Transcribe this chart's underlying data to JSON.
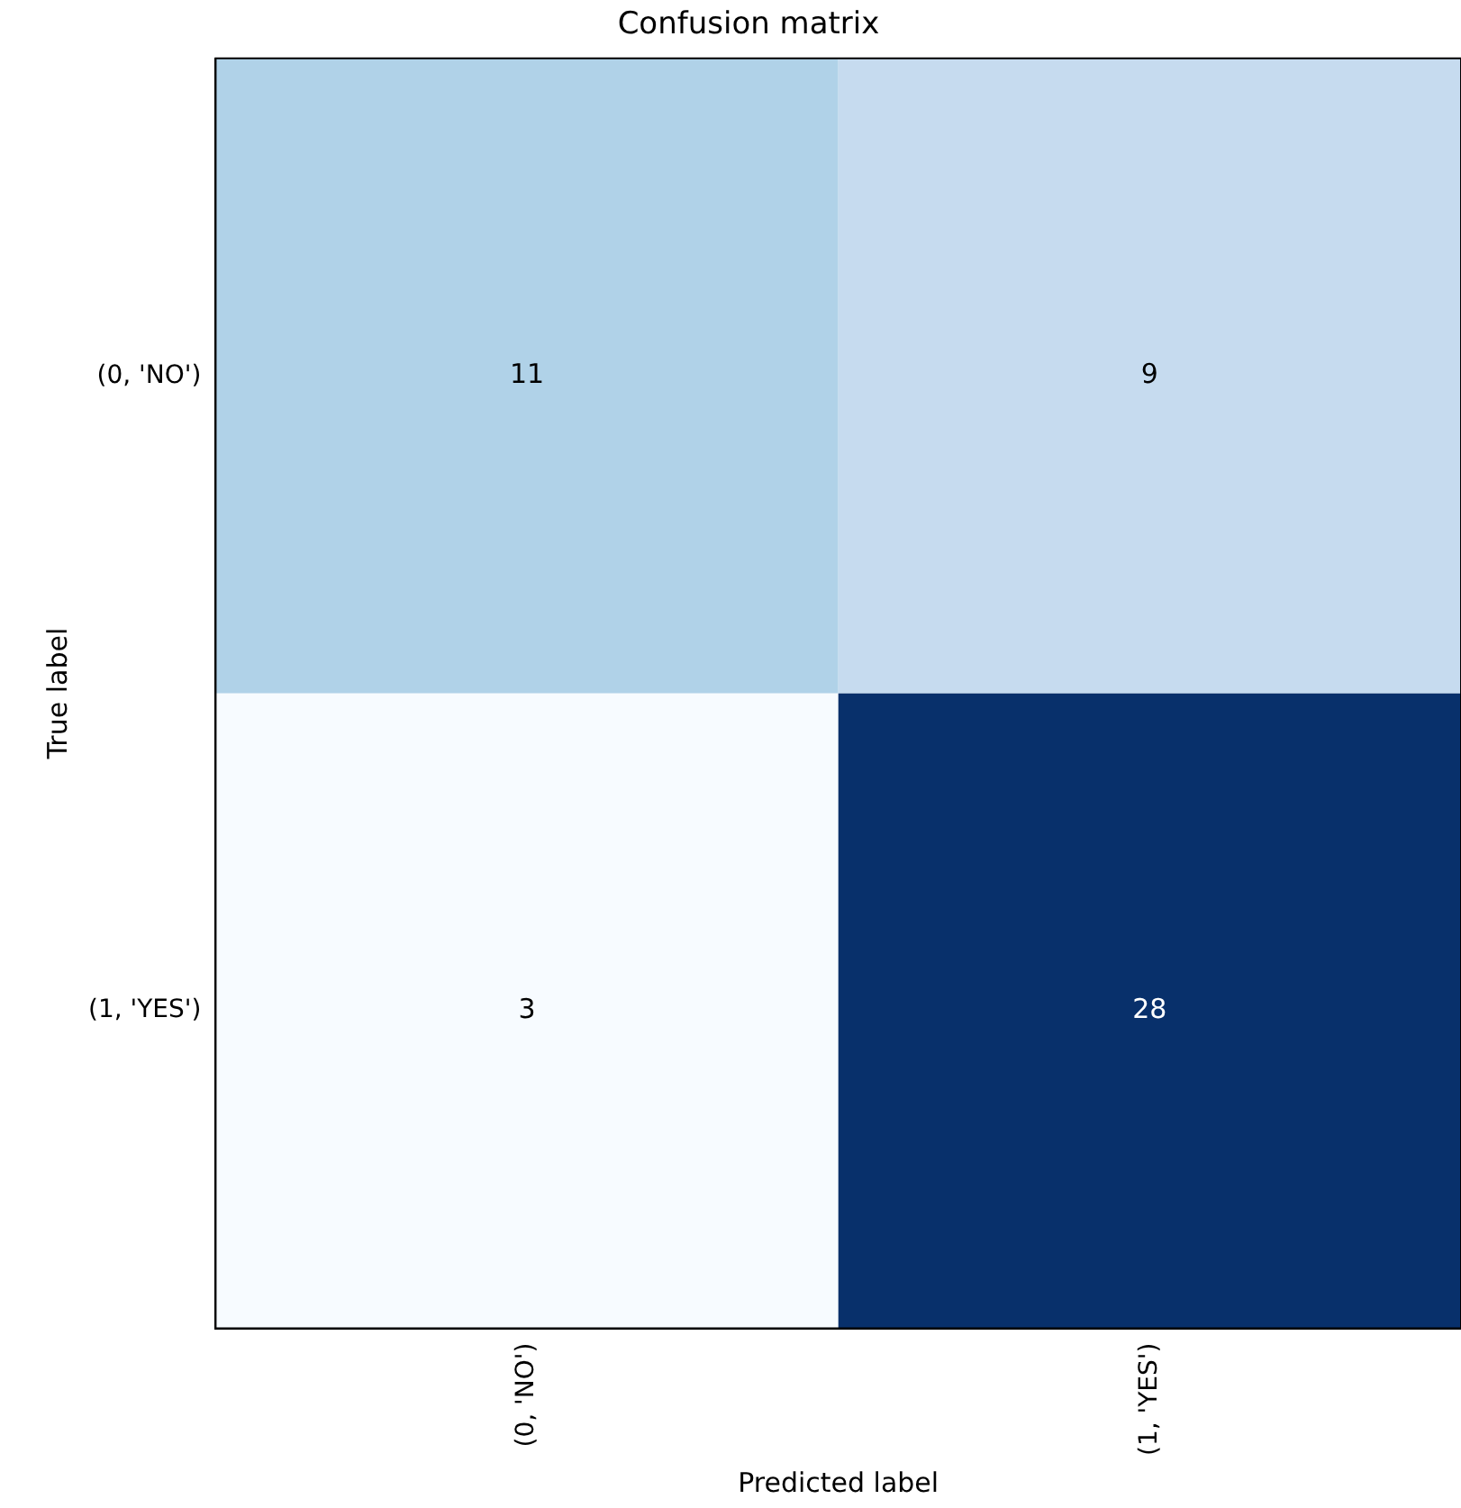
{
  "chart_data": {
    "type": "heatmap",
    "title": "Confusion matrix",
    "xlabel": "Predicted label",
    "ylabel": "True label",
    "categories": [
      "(0, 'NO')",
      "(1, 'YES')"
    ],
    "y_categories": [
      "(0, 'NO')",
      "(1, 'YES')"
    ],
    "cells": [
      [
        11,
        9
      ],
      [
        3,
        28
      ]
    ],
    "colors": [
      "#b0d2e8",
      "#c6dbef",
      "#f7fbff",
      "#08306b"
    ],
    "data_labels": true
  }
}
